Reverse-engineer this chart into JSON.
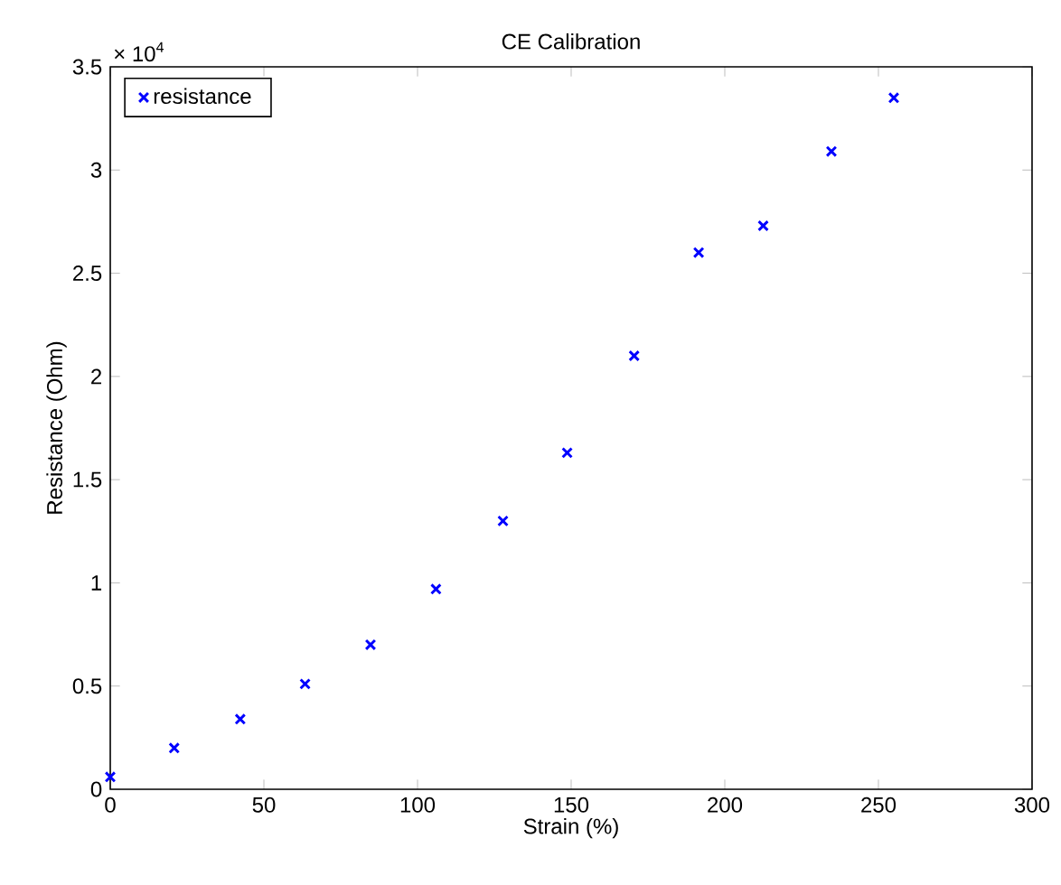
{
  "chart_data": {
    "type": "scatter",
    "title": "CE Calibration",
    "xlabel": "Strain (%)",
    "ylabel": "Resistance (Ohm)",
    "annotations": [
      "× 10$^{4}$"
    ],
    "x": [
      0,
      20.8,
      42.3,
      63.4,
      84.7,
      106,
      127.8,
      148.7,
      170.5,
      191.5,
      212.5,
      234.7,
      255
    ],
    "series": [
      {
        "name": "resistance",
        "color": "#0000ff",
        "values": [
          0.06,
          0.2,
          0.34,
          0.51,
          0.7,
          0.97,
          1.3,
          1.63,
          2.1,
          2.6,
          2.73,
          3.09,
          3.35
        ]
      }
    ],
    "xlim": [
      0,
      300
    ],
    "xticks": [
      0,
      50,
      100,
      150,
      200,
      250,
      300
    ],
    "ylim": [
      0,
      3.5
    ],
    "yticks": [
      0,
      0.5,
      1,
      1.5,
      2,
      2.5,
      3,
      3.5
    ],
    "grid": false,
    "legend": "top left",
    "marker": "cross"
  }
}
